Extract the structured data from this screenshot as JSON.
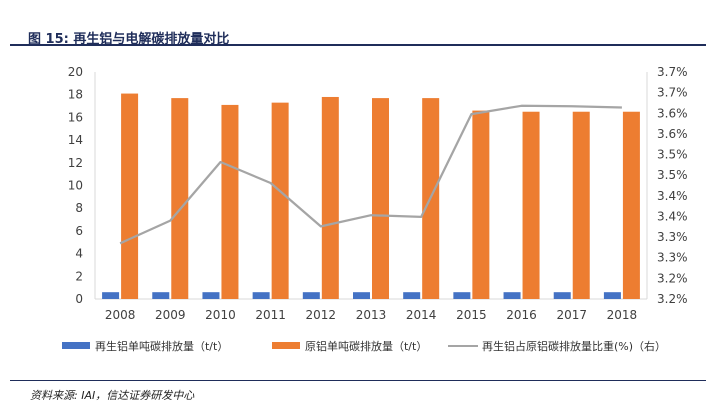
{
  "figure": {
    "title": "图 15:  再生铝与电解碳排放量对比",
    "source": "资料来源: IAI，信达证券研发中心"
  },
  "colors": {
    "secondary_bar": "#4472c4",
    "primary_bar": "#ed7d31",
    "line": "#a5a5a5",
    "title": "#1f2d5a",
    "axis_text": "#404040"
  },
  "chart_data": {
    "type": "bar",
    "categories": [
      "2008",
      "2009",
      "2010",
      "2011",
      "2012",
      "2013",
      "2014",
      "2015",
      "2016",
      "2017",
      "2018"
    ],
    "series": [
      {
        "name": "再生铝单吨碳排放量（t/t）",
        "type": "bar",
        "axis": "left",
        "values": [
          0.6,
          0.6,
          0.6,
          0.6,
          0.6,
          0.6,
          0.6,
          0.6,
          0.6,
          0.6,
          0.6
        ]
      },
      {
        "name": "原铝单吨碳排放量（t/t）",
        "type": "bar",
        "axis": "left",
        "values": [
          18.1,
          17.7,
          17.1,
          17.3,
          17.8,
          17.7,
          17.7,
          16.6,
          16.5,
          16.5,
          16.5
        ]
      },
      {
        "name": "再生铝占原铝碳排放量比重(%)（右）",
        "type": "line",
        "axis": "right",
        "values": [
          3.335,
          3.39,
          3.532,
          3.481,
          3.376,
          3.403,
          3.399,
          3.648,
          3.668,
          3.667,
          3.664
        ]
      }
    ],
    "left_axis": {
      "min": 0,
      "max": 20,
      "step": 2,
      "ticks": [
        "0",
        "2",
        "4",
        "6",
        "8",
        "10",
        "12",
        "14",
        "16",
        "18",
        "20"
      ]
    },
    "right_axis": {
      "min": 3.2,
      "max": 3.75,
      "step": 0.05,
      "ticks": [
        "3.2%",
        "3.2%",
        "3.3%",
        "3.3%",
        "3.4%",
        "3.4%",
        "3.5%",
        "3.5%",
        "3.6%",
        "3.6%",
        "3.7%",
        "3.7%"
      ]
    },
    "legend": [
      "再生铝单吨碳排放量（t/t）",
      "原铝单吨碳排放量（t/t）",
      "再生铝占原铝碳排放量比重(%)（右）"
    ],
    "grid": false,
    "legend_position": "bottom"
  }
}
